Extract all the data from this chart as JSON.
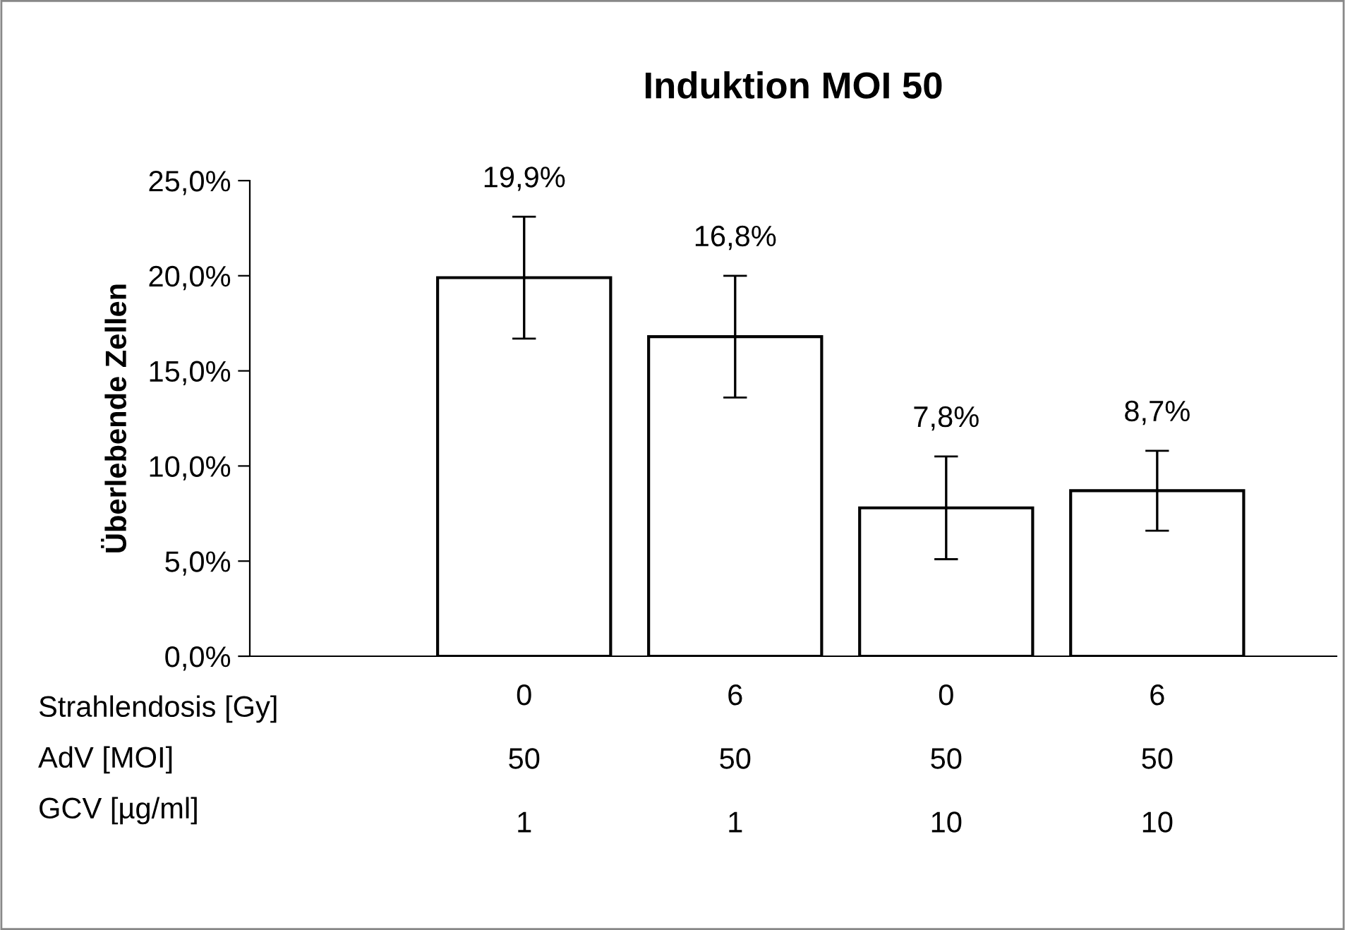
{
  "chart_data": {
    "type": "bar",
    "title": "Induktion MOI 50",
    "ylabel": "Überlebende Zellen",
    "categories": [
      "0\n50\n1",
      "6\n50\n1",
      "0\n50\n10",
      "6\n50\n10"
    ],
    "values": [
      19.9,
      16.8,
      7.8,
      8.7
    ],
    "errors": [
      3.2,
      3.2,
      2.7,
      2.1
    ],
    "value_labels": [
      "19,9%",
      "16,8%",
      "7,8%",
      "8,7%"
    ],
    "color": "#ffffff",
    "ylim": [
      0,
      25
    ],
    "yticks": [
      {
        "value": 0,
        "label": "0,0%"
      },
      {
        "value": 5,
        "label": "5,0%"
      },
      {
        "value": 10,
        "label": "10,0%"
      },
      {
        "value": 15,
        "label": "15,0%"
      },
      {
        "value": 20,
        "label": "20,0%"
      },
      {
        "value": 25,
        "label": "25,0%"
      }
    ],
    "annotations": [
      "Strahlendosis [Gy]",
      "AdV [MOI]",
      "GCV [µg/ml]"
    ]
  }
}
